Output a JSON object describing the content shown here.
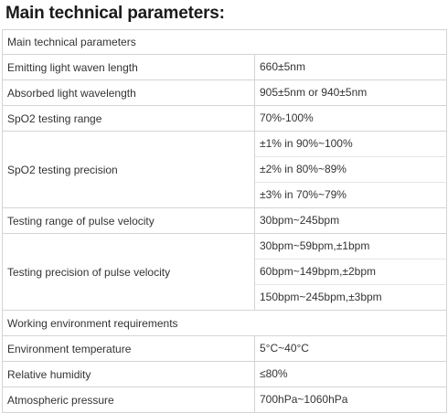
{
  "heading": "Main technical parameters:",
  "table": {
    "section1_title": "Main technical parameters",
    "section1_rows": [
      {
        "label": "Emitting light waven length",
        "values": [
          "660±5nm"
        ]
      },
      {
        "label": "Absorbed light wavelength",
        "values": [
          "905±5nm or 940±5nm"
        ]
      },
      {
        "label": "SpO2 testing range",
        "values": [
          "70%-100%"
        ]
      },
      {
        "label": "SpO2 testing precision",
        "values": [
          "±1% in 90%~100%",
          "±2% in 80%~89%",
          "±3% in 70%~79%"
        ]
      },
      {
        "label": "Testing range of pulse velocity",
        "values": [
          "30bpm~245bpm"
        ]
      },
      {
        "label": "Testing precision of pulse velocity",
        "values": [
          "30bpm~59bpm,±1bpm",
          "60bpm~149bpm,±2bpm",
          "150bpm~245bpm,±3bpm"
        ]
      }
    ],
    "section2_title": "Working environment requirements",
    "section2_rows": [
      {
        "label": "Environment temperature",
        "values": [
          "5°C~40°C"
        ]
      },
      {
        "label": "Relative humidity",
        "values": [
          "≤80%"
        ]
      },
      {
        "label": "Atmospheric pressure",
        "values": [
          "700hPa~1060hPa"
        ]
      }
    ]
  }
}
